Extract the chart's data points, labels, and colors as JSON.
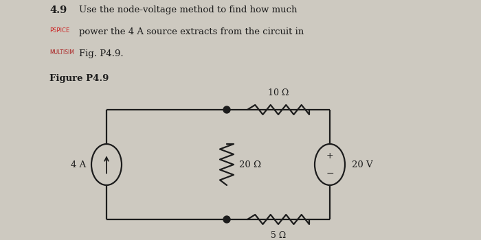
{
  "bg_color": "#cdc9c0",
  "title_num": "4.9",
  "line1": "Use the node-voltage method to find how much",
  "line2": "power the 4 A source extracts from the circuit in",
  "line3": "Fig. P4.9.",
  "pspice_label": "PSPICE",
  "multisim_label": "MULTISIM",
  "figure_label": "Figure P4.9",
  "current_source_label": "4 A",
  "r1_label": "20 Ω",
  "r2_label": "10 Ω",
  "r3_label": "5 Ω",
  "v_source_label": "20 V",
  "line_color": "#1c1c1c",
  "text_color": "#1c1c1c",
  "pspice_color": "#cc2222",
  "multisim_color": "#aa2222",
  "figsize": [
    7.0,
    3.5
  ],
  "dpi": 100
}
